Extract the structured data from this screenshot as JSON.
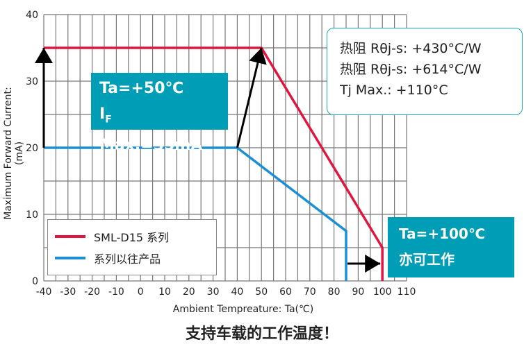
{
  "chart_data": {
    "type": "line",
    "title": "支持车载的工作温度！",
    "xlabel": "Ambient Tempreature: Ta(℃)",
    "ylabel": "Maximum Forward Current: (mA)",
    "xlim": [
      -40,
      110
    ],
    "ylim": [
      0,
      40
    ],
    "xticks": [
      "-40",
      "-30",
      "-20",
      "-10",
      "0",
      "10",
      "20",
      "30",
      "40",
      "50",
      "60",
      "70",
      "80",
      "90",
      "100",
      "110"
    ],
    "yticks": [
      "0",
      "10",
      "20",
      "30",
      "40"
    ],
    "grid": true,
    "series": [
      {
        "name": "SML-D15 系列",
        "color": "#e0163f",
        "points": [
          [
            -40,
            35
          ],
          [
            50,
            35
          ],
          [
            100,
            5
          ],
          [
            100,
            0
          ]
        ]
      },
      {
        "name": "系列以往产品",
        "color": "#1a8fd6",
        "points": [
          [
            -40,
            20
          ],
          [
            40,
            20
          ],
          [
            85,
            7.5
          ],
          [
            85,
            0
          ]
        ]
      }
    ],
    "legend_position": "bottom-left",
    "annotations": {
      "box1": {
        "line1": "Ta=+50℃",
        "line2_main": "I",
        "line2_sub": "F",
        "line2_rest": " Max.=35mA"
      },
      "info": [
        "热阻 Rθj-s: +430°C/W",
        "热阻 Rθj-s: +614°C/W",
        "Tj Max.: +110°C"
      ],
      "box2": [
        "Ta=+100℃",
        "亦可工作"
      ]
    }
  }
}
